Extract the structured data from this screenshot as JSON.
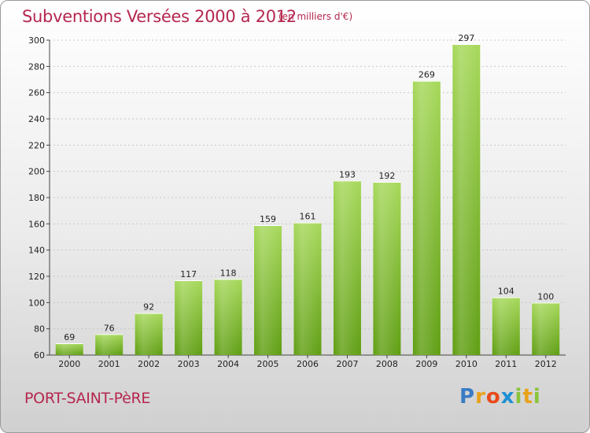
{
  "header": {
    "title": "Subventions Versées 2000 à 2012",
    "unit": "(en milliers d'€)"
  },
  "footer": {
    "commune": "PORT-SAINT-PèRE",
    "logo_letters": [
      {
        "ch": "P",
        "color": "#3a7cc4"
      },
      {
        "ch": "r",
        "color": "#e8a21a"
      },
      {
        "ch": "o",
        "color": "#e84a1a"
      },
      {
        "ch": "x",
        "color": "#1e8fd4"
      },
      {
        "ch": "i",
        "color": "#8bc43a"
      },
      {
        "ch": "t",
        "color": "#e8a21a"
      },
      {
        "ch": "i",
        "color": "#8bc43a"
      }
    ]
  },
  "chart_data": {
    "type": "bar",
    "categories": [
      "2000",
      "2001",
      "2002",
      "2003",
      "2004",
      "2005",
      "2006",
      "2007",
      "2008",
      "2009",
      "2010",
      "2011",
      "2012"
    ],
    "values": [
      69,
      76,
      92,
      117,
      118,
      159,
      161,
      193,
      192,
      269,
      297,
      104,
      100
    ],
    "title": "Subventions Versées 2000 à 2012",
    "ylim": [
      60,
      300
    ],
    "yticks": [
      60,
      80,
      100,
      120,
      140,
      160,
      180,
      200,
      220,
      240,
      260,
      280,
      300
    ],
    "grid": true,
    "bar_color": "#7cbd2c"
  }
}
